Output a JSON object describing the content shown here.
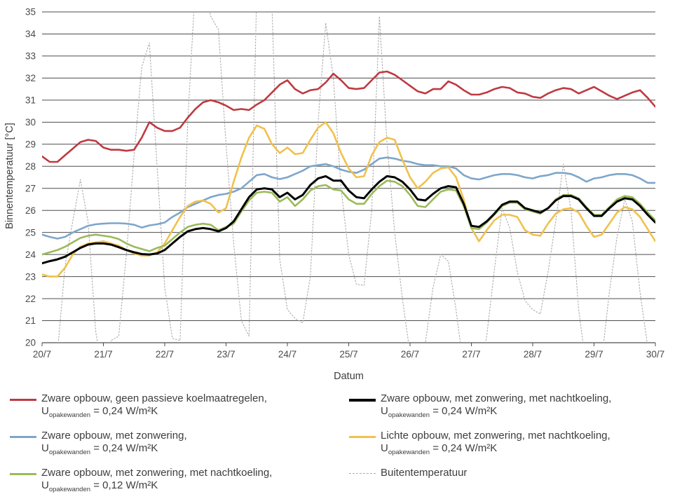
{
  "chart_data": {
    "type": "line",
    "title": "",
    "xlabel": "Datum",
    "ylabel": "Binnentemperatuur [°C]",
    "ylim": [
      20,
      35
    ],
    "grid": "horizontal",
    "legend_position": "bottom",
    "x_axis": {
      "tick_labels": [
        "20/7",
        "21/7",
        "22/7",
        "23/7",
        "24/7",
        "25/7",
        "26/7",
        "27/7",
        "28/7",
        "29/7",
        "30/7"
      ]
    },
    "y_axis": {
      "tick_labels": [
        "20",
        "21",
        "22",
        "23",
        "24",
        "25",
        "26",
        "27",
        "28",
        "29",
        "30",
        "31",
        "32",
        "33",
        "34",
        "35"
      ]
    },
    "x_days": {
      "start": 20.0,
      "step": 0.125,
      "count": 81,
      "unit": "day of July"
    },
    "series": [
      {
        "id": "buitentemperatuur",
        "name": "Buitentemperatuur",
        "color": "#ABABAB",
        "style": "dotted",
        "width": 1.1,
        "note": "values outside 20-35 are clipped by the plot area",
        "values": [
          19.0,
          18.5,
          19.5,
          23.5,
          25.5,
          27.4,
          25.5,
          20.5,
          18.5,
          20.1,
          20.3,
          24.0,
          28.5,
          32.5,
          33.6,
          28.0,
          22.5,
          20.2,
          20.1,
          30.0,
          36.3,
          36.5,
          34.8,
          34.2,
          29.0,
          24.5,
          21.0,
          20.3,
          36.0,
          36.5,
          35.2,
          23.8,
          21.5,
          21.1,
          20.9,
          23.0,
          30.0,
          34.5,
          32.0,
          27.0,
          24.0,
          22.65,
          22.6,
          26.0,
          34.8,
          29.0,
          25.0,
          22.0,
          19.5,
          19.3,
          20.0,
          22.5,
          24.0,
          23.7,
          21.5,
          18.8,
          17.8,
          18.2,
          20.3,
          23.3,
          26.1,
          25.2,
          23.2,
          21.9,
          21.5,
          21.3,
          23.2,
          25.5,
          28.1,
          26.0,
          21.5,
          18.8,
          18.0,
          19.2,
          22.3,
          24.8,
          26.5,
          25.5,
          22.3,
          19.8,
          18.0
        ]
      },
      {
        "id": "zwaar-geen-koeling",
        "name": "Zware opbouw, geen passieve koelmaatregelen, U opakewanden = 0,24 W/m²K",
        "color": "#BE3A41",
        "style": "solid",
        "width": 2.6,
        "values": [
          28.45,
          28.2,
          28.2,
          28.5,
          28.8,
          29.1,
          29.2,
          29.15,
          28.85,
          28.75,
          28.75,
          28.7,
          28.75,
          29.3,
          30.0,
          29.75,
          29.6,
          29.6,
          29.75,
          30.2,
          30.6,
          30.9,
          31.0,
          30.9,
          30.75,
          30.55,
          30.6,
          30.55,
          30.8,
          31.0,
          31.35,
          31.7,
          31.9,
          31.5,
          31.3,
          31.45,
          31.5,
          31.8,
          32.2,
          31.9,
          31.55,
          31.5,
          31.55,
          31.9,
          32.25,
          32.3,
          32.15,
          31.9,
          31.65,
          31.4,
          31.3,
          31.5,
          31.5,
          31.85,
          31.7,
          31.45,
          31.25,
          31.25,
          31.35,
          31.5,
          31.6,
          31.55,
          31.35,
          31.3,
          31.15,
          31.1,
          31.3,
          31.45,
          31.55,
          31.5,
          31.3,
          31.45,
          31.6,
          31.4,
          31.2,
          31.05,
          31.2,
          31.35,
          31.45,
          31.1,
          30.7
        ]
      },
      {
        "id": "zwaar-zonwering",
        "name": "Zware opbouw, met zonwering, U opakewanden = 0,24 W/m²K",
        "color": "#7EA6CB",
        "style": "solid",
        "width": 2.6,
        "values": [
          24.9,
          24.8,
          24.72,
          24.8,
          25.0,
          25.15,
          25.3,
          25.37,
          25.4,
          25.42,
          25.42,
          25.4,
          25.35,
          25.22,
          25.32,
          25.37,
          25.45,
          25.7,
          25.9,
          26.15,
          26.3,
          26.45,
          26.6,
          26.7,
          26.75,
          26.85,
          27.0,
          27.3,
          27.6,
          27.65,
          27.5,
          27.42,
          27.5,
          27.65,
          27.8,
          28.0,
          28.05,
          28.1,
          28.0,
          27.85,
          27.75,
          27.7,
          27.85,
          28.1,
          28.35,
          28.4,
          28.35,
          28.25,
          28.2,
          28.1,
          28.05,
          28.05,
          28.0,
          28.0,
          27.9,
          27.6,
          27.45,
          27.4,
          27.5,
          27.6,
          27.65,
          27.65,
          27.6,
          27.5,
          27.45,
          27.55,
          27.6,
          27.7,
          27.7,
          27.65,
          27.5,
          27.3,
          27.45,
          27.5,
          27.6,
          27.65,
          27.65,
          27.6,
          27.45,
          27.25,
          27.25
        ]
      },
      {
        "id": "licht-zonwering-nachtkoeling",
        "name": "Lichte opbouw, met zonwering, met nachtkoeling, U opakewanden = 0,24 W/m²K",
        "color": "#F0C14D",
        "style": "solid",
        "width": 2.6,
        "values": [
          23.1,
          23.0,
          23.0,
          23.4,
          24.0,
          24.35,
          24.5,
          24.55,
          24.6,
          24.5,
          24.4,
          24.2,
          24.05,
          23.95,
          23.95,
          24.1,
          24.5,
          25.1,
          25.7,
          26.2,
          26.4,
          26.45,
          26.3,
          25.9,
          26.1,
          27.3,
          28.4,
          29.3,
          29.85,
          29.7,
          29.0,
          28.6,
          28.85,
          28.55,
          28.6,
          29.2,
          29.75,
          30.0,
          29.5,
          28.6,
          27.9,
          27.5,
          27.55,
          28.5,
          29.1,
          29.3,
          29.2,
          28.3,
          27.5,
          27.0,
          27.3,
          27.7,
          27.9,
          27.95,
          27.5,
          26.5,
          25.2,
          24.6,
          25.1,
          25.55,
          25.8,
          25.8,
          25.7,
          25.1,
          24.9,
          24.85,
          25.4,
          25.85,
          26.05,
          26.1,
          25.9,
          25.3,
          24.8,
          24.9,
          25.4,
          25.9,
          26.15,
          26.05,
          25.7,
          25.15,
          24.6
        ]
      },
      {
        "id": "zwaar-zonwering-nachtkoeling-012",
        "name": "Zware opbouw, met zonwering, met nachtkoeling, U opakewanden = 0,12 W/m²K",
        "color": "#9BBA58",
        "style": "solid",
        "width": 2.6,
        "values": [
          24.0,
          24.1,
          24.2,
          24.35,
          24.55,
          24.75,
          24.85,
          24.9,
          24.85,
          24.8,
          24.7,
          24.5,
          24.35,
          24.25,
          24.15,
          24.3,
          24.4,
          24.7,
          25.0,
          25.25,
          25.35,
          25.4,
          25.35,
          25.1,
          25.25,
          25.4,
          25.95,
          26.45,
          26.8,
          26.85,
          26.8,
          26.4,
          26.6,
          26.2,
          26.5,
          26.9,
          27.1,
          27.15,
          26.95,
          26.9,
          26.5,
          26.3,
          26.3,
          26.75,
          27.1,
          27.35,
          27.3,
          27.1,
          26.7,
          26.2,
          26.15,
          26.5,
          26.85,
          26.95,
          26.9,
          26.2,
          25.2,
          25.15,
          25.45,
          25.8,
          26.2,
          26.35,
          26.35,
          26.05,
          25.95,
          25.85,
          26.1,
          26.5,
          26.7,
          26.7,
          26.55,
          26.15,
          25.8,
          25.8,
          26.15,
          26.5,
          26.65,
          26.6,
          26.3,
          25.9,
          25.55
        ]
      },
      {
        "id": "zwaar-zonwering-nachtkoeling-024",
        "name": "Zware opbouw, met zonwering, met nachtkoeling, U opakewanden = 0,24 W/m²K",
        "color": "#000000",
        "style": "solid",
        "width": 3.0,
        "values": [
          23.6,
          23.7,
          23.78,
          23.9,
          24.1,
          24.3,
          24.45,
          24.5,
          24.5,
          24.45,
          24.33,
          24.2,
          24.1,
          24.02,
          24.0,
          24.05,
          24.2,
          24.5,
          24.8,
          25.05,
          25.15,
          25.2,
          25.15,
          25.05,
          25.2,
          25.5,
          26.05,
          26.6,
          26.95,
          27.0,
          26.95,
          26.6,
          26.8,
          26.5,
          26.7,
          27.15,
          27.45,
          27.55,
          27.35,
          27.35,
          26.9,
          26.6,
          26.55,
          26.95,
          27.3,
          27.55,
          27.5,
          27.3,
          26.95,
          26.5,
          26.45,
          26.75,
          27.0,
          27.1,
          27.05,
          26.3,
          25.3,
          25.25,
          25.5,
          25.85,
          26.25,
          26.4,
          26.4,
          26.1,
          26.0,
          25.9,
          26.1,
          26.45,
          26.65,
          26.65,
          26.5,
          26.1,
          25.75,
          25.75,
          26.1,
          26.4,
          26.55,
          26.5,
          26.2,
          25.8,
          25.45
        ]
      }
    ]
  },
  "legend": {
    "items": [
      {
        "line1": "Zware opbouw, geen passieve koelmaatregelen,",
        "u_symbol": "U",
        "u_sub": "opakewanden",
        "u_value": "=  0,24 W/m²K",
        "color": "#BE3A41",
        "swatch_style": "solid",
        "swatch_width": 3
      },
      {
        "line1": "Zware opbouw, met zonwering,",
        "u_symbol": "U",
        "u_sub": "opakewanden",
        "u_value": "=  0,24 W/m²K",
        "color": "#7EA6CB",
        "swatch_style": "solid",
        "swatch_width": 3
      },
      {
        "line1": "Zware opbouw, met zonwering, met nachtkoeling,",
        "u_symbol": "U",
        "u_sub": "opakewanden",
        "u_value": "=  0,12 W/m²K",
        "color": "#9BBA58",
        "swatch_style": "solid",
        "swatch_width": 3
      },
      {
        "line1": "Zware opbouw, met zonwering, met nachtkoeling,",
        "u_symbol": "U",
        "u_sub": "opakewanden",
        "u_value": "=  0,24 W/m²K",
        "color": "#000000",
        "swatch_style": "solid",
        "swatch_width": 4
      },
      {
        "line1": "Lichte opbouw, met zonwering, met nachtkoeling,",
        "u_symbol": "U",
        "u_sub": "opakewanden",
        "u_value": "=  0,24 W/m²K",
        "color": "#F0C14D",
        "swatch_style": "solid",
        "swatch_width": 3
      },
      {
        "line1": "Buitentemperatuur",
        "color": "#ABABAB",
        "swatch_style": "dashed",
        "swatch_width": 1
      }
    ]
  }
}
